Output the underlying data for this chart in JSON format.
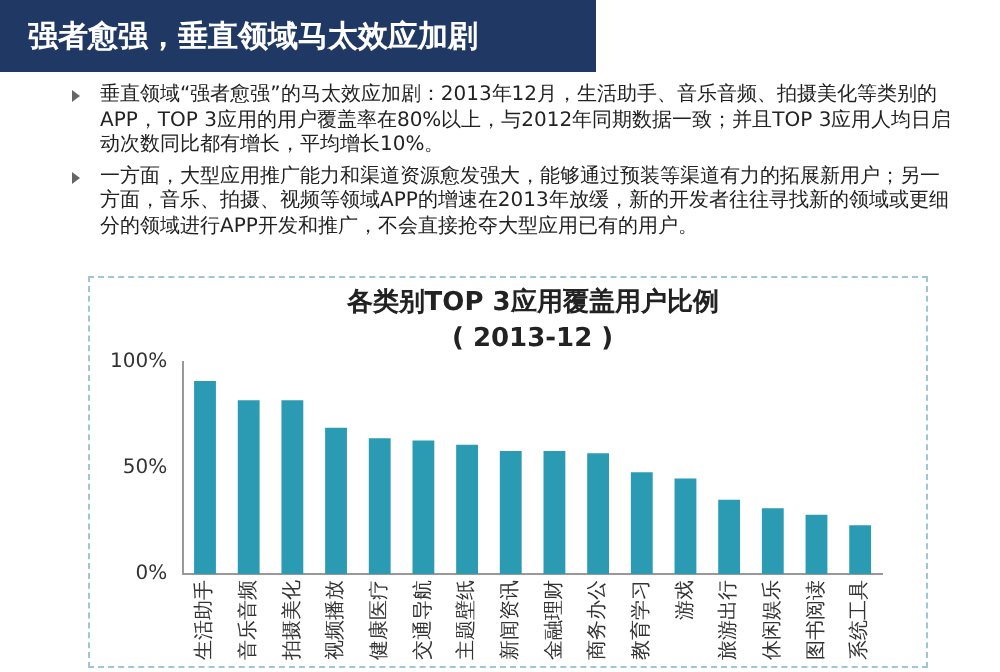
{
  "chart_data": {
    "type": "bar",
    "title": "各类别TOP 3应用覆盖用户比例",
    "subtitle": "( 2013-12 )",
    "annotations": [
      "强者愈强，垂直领域马太效应加剧",
      "垂直领域“强者愈强”的马太效应加剧：2013年12月，生活助手、音乐音频、拍摄美化等类别的APP，TOP 3应用的用户覆盖率在80%以上，与2012年同期数据一致；并且TOP 3应用人均日启动次数同比都有增长，平均增长10%。",
      "一方面，大型应用推广能力和渠道资源愈发强大，能够通过预装等渠道有力的拓展新用户；另一方面，音乐、拍摄、视频等领域APP的增速在2013年放缓，新的开发者往往寻找新的领域或更细分的领域进行APP开发和推广，不会直接抢夺大型应用已有的用户。"
    ],
    "categories": [
      "生活助手",
      "音乐音频",
      "拍摄美化",
      "视频播放",
      "健康医疗",
      "交通导航",
      "主题壁纸",
      "新闻资讯",
      "金融理财",
      "商务办公",
      "教育学习",
      "游戏",
      "旅游出行",
      "休闲娱乐",
      "图书阅读",
      "系统工具"
    ],
    "values": [
      91,
      82,
      82,
      69,
      64,
      63,
      61,
      58,
      58,
      57,
      48,
      45,
      35,
      31,
      28,
      23
    ],
    "color": "#2b9bb3",
    "ylim": [
      0,
      100
    ],
    "yticks": [
      {
        "value": 0,
        "label": "0%"
      },
      {
        "value": 50,
        "label": "50%"
      },
      {
        "value": 100,
        "label": "100%"
      }
    ],
    "grid": false,
    "legend": false
  }
}
